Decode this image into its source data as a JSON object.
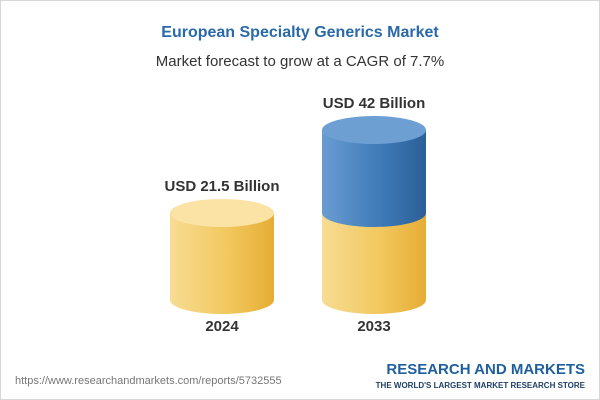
{
  "chart_data": {
    "type": "bar",
    "title": "European Specialty Generics Market",
    "subtitle": "Market forecast to grow at a CAGR of 7.7%",
    "categories": [
      "2024",
      "2033"
    ],
    "values": [
      21.5,
      42
    ],
    "value_labels": [
      "USD 21.5 Billion",
      "USD 42 Billion"
    ],
    "colors": [
      "#f2c85f",
      "#3f7bb8"
    ],
    "source": "https://www.researchandmarkets.com/reports/5732555",
    "brand": "RESEARCH AND MARKETS",
    "tagline": "THE WORLD'S LARGEST MARKET RESEARCH STORE"
  }
}
